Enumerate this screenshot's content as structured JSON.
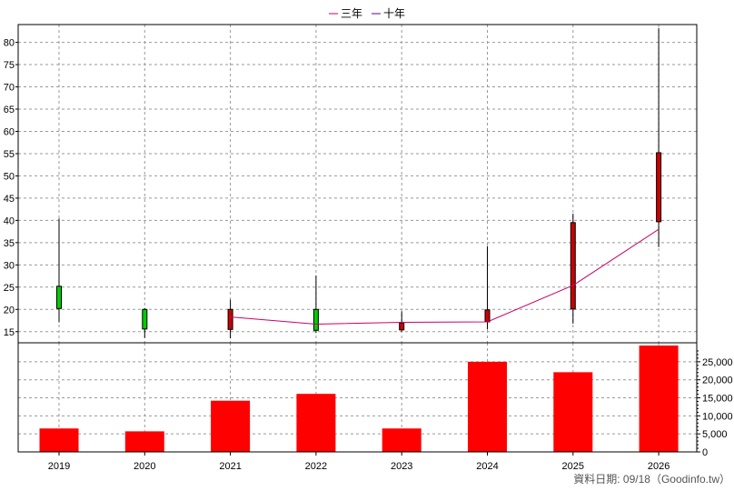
{
  "chart_data": {
    "type": "candlestick+line+bar",
    "legend": [
      {
        "name": "三年",
        "color": "#cc0066"
      },
      {
        "name": "十年",
        "color": "#660099"
      }
    ],
    "legend_placement": "top-center",
    "categories": [
      "2019",
      "2020",
      "2021",
      "2022",
      "2023",
      "2024",
      "2025",
      "2026"
    ],
    "price": {
      "ylim": [
        12.5,
        84
      ],
      "yticks": [
        15,
        20,
        25,
        30,
        35,
        40,
        45,
        50,
        55,
        60,
        65,
        70,
        75,
        80
      ],
      "yaxis_side": "left",
      "candles": [
        {
          "x": "2019",
          "open": 25.2,
          "close": 20.2,
          "high": 40.4,
          "low": 17.1,
          "color": "#00cc00"
        },
        {
          "x": "2020",
          "open": 20.0,
          "close": 15.6,
          "high": 20.3,
          "low": 13.6,
          "color": "#00cc00"
        },
        {
          "x": "2021",
          "open": 15.5,
          "close": 20.0,
          "high": 22.2,
          "low": 13.5,
          "color": "#cc0000"
        },
        {
          "x": "2022",
          "open": 20.0,
          "close": 15.3,
          "high": 27.6,
          "low": 14.7,
          "color": "#00cc00"
        },
        {
          "x": "2023",
          "open": 15.4,
          "close": 16.9,
          "high": 19.6,
          "low": 15.0,
          "color": "#cc0000"
        },
        {
          "x": "2024",
          "open": 17.2,
          "close": 19.9,
          "high": 34.2,
          "low": 15.5,
          "color": "#cc0000"
        },
        {
          "x": "2025",
          "open": 20.1,
          "close": 39.5,
          "high": 41.5,
          "low": 16.8,
          "color": "#cc0000"
        },
        {
          "x": "2026",
          "open": 39.7,
          "close": 55.2,
          "high": 83.2,
          "low": 34.0,
          "color": "#cc0000"
        }
      ],
      "line_series": [
        {
          "name": "三年",
          "color": "#cc0066",
          "points": [
            {
              "x": "2021",
              "y": 18.3
            },
            {
              "x": "2022",
              "y": 16.7
            },
            {
              "x": "2023",
              "y": 17.1
            },
            {
              "x": "2024",
              "y": 17.2
            },
            {
              "x": "2025",
              "y": 25.4
            },
            {
              "x": "2026",
              "y": 38.0
            }
          ]
        }
      ]
    },
    "volume": {
      "ylim": [
        0,
        29000
      ],
      "yticks": [
        0,
        5000,
        10000,
        15000,
        20000,
        25000
      ],
      "yticklabels": [
        "0",
        "5,000",
        "10,000",
        "15,000",
        "20,000",
        "25,000"
      ],
      "yaxis_side": "right",
      "color": "#ff0000",
      "values": [
        6500,
        5700,
        14200,
        16100,
        6500,
        25000,
        22100,
        29500
      ]
    },
    "grid": true,
    "footer": "資料日期: 09/18（Goodinfo.tw）"
  }
}
